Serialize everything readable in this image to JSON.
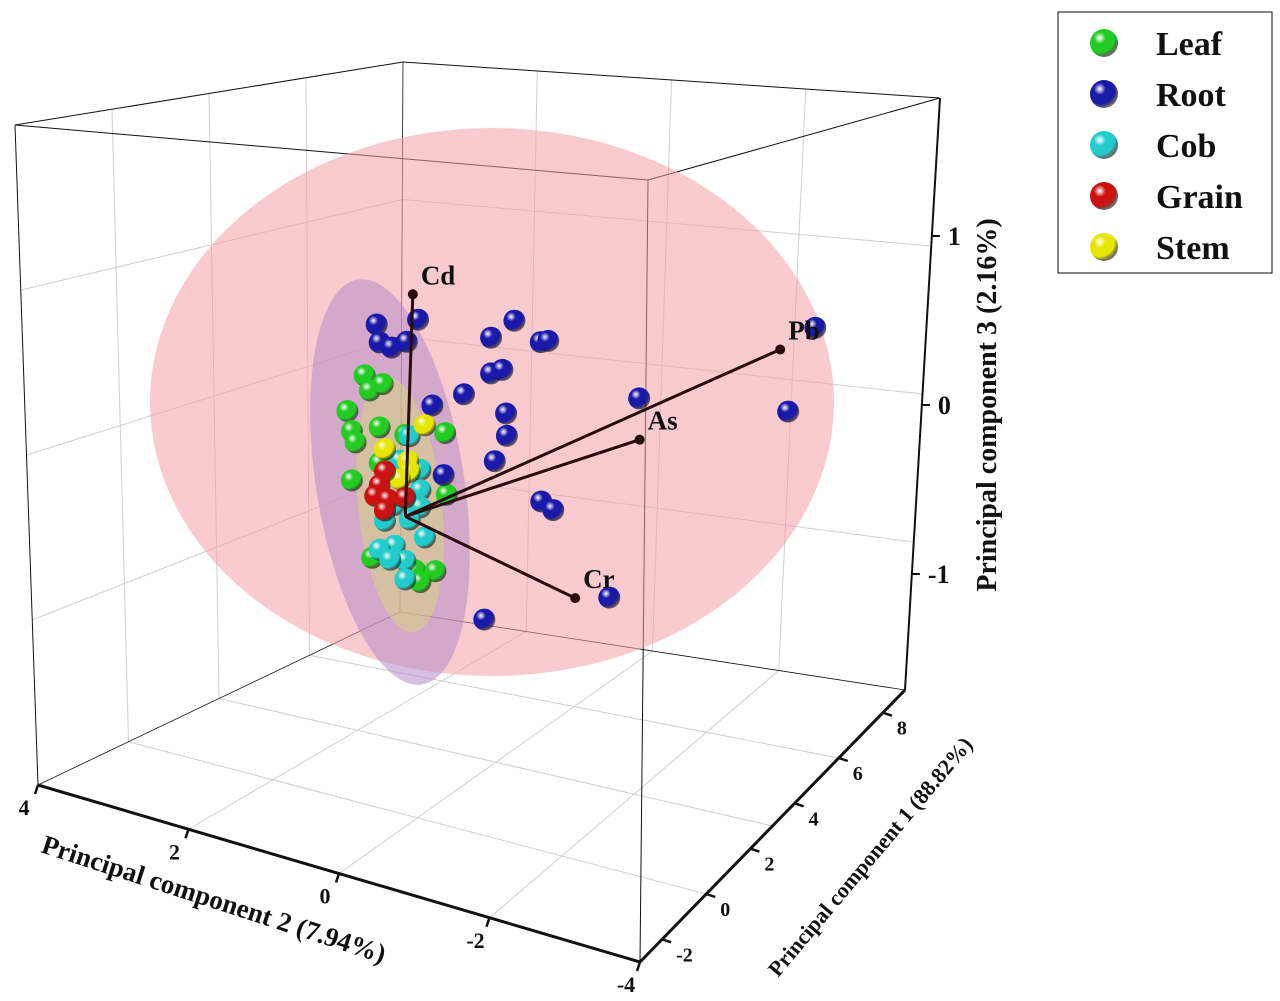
{
  "chart_data": {
    "type": "scatter3d-biplot",
    "title": "",
    "axes": {
      "x": {
        "label": "Principal component 2 (7.94%)",
        "range": [
          -4,
          4
        ],
        "ticks": [
          4,
          2,
          0,
          -2,
          -4
        ]
      },
      "y": {
        "label": "Principal component 1 (88.82%)",
        "range": [
          -3,
          9
        ],
        "ticks": [
          -2,
          0,
          2,
          4,
          6,
          8
        ]
      },
      "z": {
        "label": "Principal component 3 (2.16%)",
        "range": [
          -1.7,
          1.8
        ],
        "ticks": [
          1,
          0,
          -1
        ]
      }
    },
    "grid": true,
    "legend": {
      "placement": "top-right"
    },
    "colors": {
      "Leaf": "#22cc22",
      "Root": "#1a1aaa",
      "Cob": "#22cccc",
      "Grain": "#cc1111",
      "Stem": "#e6e600",
      "ellipse_all": "#f4a0a8",
      "ellipse_purple": "#b48cc8",
      "ellipse_yellow": "#d8e070"
    },
    "series": [
      {
        "name": "Leaf",
        "points": [
          [
            0,
            0.54,
            0.76
          ],
          [
            0,
            0.47,
            0.68
          ],
          [
            0,
            0.3,
            0.74
          ],
          [
            0,
            0.77,
            0.52
          ],
          [
            0,
            0.71,
            0.41
          ],
          [
            0,
            0.66,
            0.35
          ],
          [
            0,
            0.34,
            0.48
          ],
          [
            0,
            0.0,
            0.48
          ],
          [
            0,
            -0.53,
            0.56
          ],
          [
            0,
            0.34,
            0.27
          ],
          [
            0,
            0.71,
            0.12
          ],
          [
            0,
            -0.55,
            0.2
          ],
          [
            0,
            0.44,
            -0.3
          ],
          [
            0,
            -0.13,
            -0.3
          ],
          [
            0,
            -0.4,
            -0.27
          ],
          [
            0,
            -0.2,
            -0.36
          ]
        ]
      },
      {
        "name": "Root",
        "points": [
          [
            0,
            0.38,
            1.08
          ],
          [
            0,
            0.34,
            0.98
          ],
          [
            0,
            0.18,
            0.97
          ],
          [
            0,
            -0.02,
            1.03
          ],
          [
            0,
            -0.17,
            1.18
          ],
          [
            0,
            -0.36,
            0.7
          ],
          [
            0,
            -0.78,
            0.82
          ],
          [
            0,
            -1.14,
            1.2
          ],
          [
            0,
            -1.45,
            1.34
          ],
          [
            0,
            -1.8,
            1.26
          ],
          [
            0,
            -1.9,
            1.28
          ],
          [
            0,
            -1.14,
            0.99
          ],
          [
            0,
            -1.29,
            1.03
          ],
          [
            0,
            -1.34,
            0.78
          ],
          [
            0,
            -1.35,
            0.65
          ],
          [
            0,
            -1.19,
            0.48
          ],
          [
            0,
            -0.51,
            0.31
          ],
          [
            0,
            -1.05,
            -0.47
          ],
          [
            2,
            -1.22,
            -0.02
          ],
          [
            2,
            -1.38,
            -0.05
          ],
          [
            3,
            -1.83,
            -0.64
          ],
          [
            5,
            -1.64,
            0.24
          ],
          [
            5,
            -3.62,
            0.42
          ],
          [
            5,
            -3.98,
            0.96
          ]
        ]
      },
      {
        "name": "Cob",
        "points": [
          [
            0,
            -0.06,
            0.48
          ],
          [
            0,
            0.07,
            0.32
          ],
          [
            0,
            -0.2,
            0.3
          ],
          [
            0,
            -0.2,
            0.18
          ],
          [
            0,
            0.14,
            0.05
          ],
          [
            0,
            -0.2,
            0.08
          ],
          [
            0,
            0.27,
            -0.06
          ],
          [
            0,
            -0.06,
            -0.01
          ],
          [
            0,
            -0.26,
            -0.09
          ],
          [
            0,
            0.14,
            -0.19
          ],
          [
            0,
            0.34,
            -0.24
          ],
          [
            0,
            0.0,
            -0.26
          ],
          [
            0,
            0.0,
            -0.37
          ],
          [
            0,
            0.2,
            -0.28
          ]
        ]
      },
      {
        "name": "Stem",
        "points": [
          [
            0,
            -0.26,
            0.57
          ],
          [
            0,
            0.27,
            0.36
          ],
          [
            0,
            -0.04,
            0.33
          ],
          [
            0,
            -0.06,
            0.27
          ],
          [
            0,
            0.07,
            0.21
          ]
        ]
      },
      {
        "name": "Grain",
        "points": [
          [
            0,
            0.27,
            0.23
          ],
          [
            0,
            0.34,
            0.14
          ],
          [
            0,
            0.4,
            0.07
          ],
          [
            0,
            0.23,
            0.07
          ],
          [
            0,
            0.0,
            0.11
          ],
          [
            0,
            0.27,
            0.0
          ]
        ]
      }
    ],
    "point_order": "[PC1, PC2, PC3]",
    "loadings": [
      {
        "name": "Cd",
        "vector": [
          0,
          -0.1,
          1.32
        ]
      },
      {
        "name": "Pb",
        "vector": [
          6,
          -3.22,
          0.6
        ]
      },
      {
        "name": "As",
        "vector": [
          4,
          -1.94,
          0.17
        ]
      },
      {
        "name": "Cr",
        "vector": [
          2,
          -1.67,
          -0.53
        ]
      }
    ],
    "legend_entries": [
      "Leaf",
      "Root",
      "Cob",
      "Grain",
      "Stem"
    ]
  }
}
